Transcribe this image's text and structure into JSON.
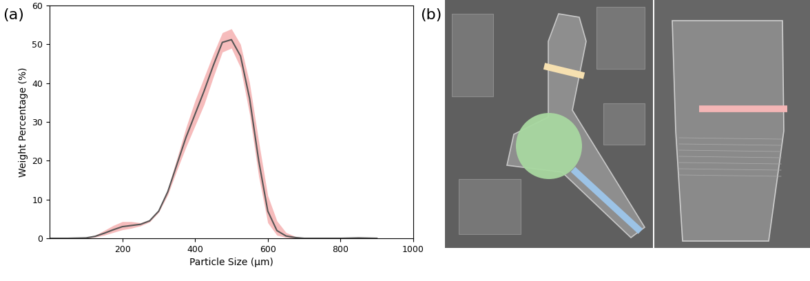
{
  "panel_labels": {
    "a": "(a)",
    "b": "(b)"
  },
  "chart_data": {
    "type": "line",
    "x_label": "Particle Size (μm)",
    "y_label": "Weight Percentage (%)",
    "x": [
      0,
      50,
      100,
      125,
      150,
      175,
      200,
      225,
      250,
      275,
      300,
      325,
      350,
      375,
      400,
      425,
      450,
      475,
      500,
      525,
      550,
      575,
      600,
      625,
      650,
      675,
      700,
      750,
      800,
      850,
      900
    ],
    "series": [
      {
        "color": "#555555",
        "values": [
          0,
          0,
          0.1,
          0.5,
          1.3,
          2.2,
          3.0,
          3.3,
          3.6,
          4.5,
          7,
          12,
          19,
          26,
          32,
          38,
          44.5,
          50.5,
          51.2,
          47,
          36,
          20,
          7,
          2,
          0.6,
          0.2,
          0,
          0,
          0,
          0.1,
          0
        ]
      }
    ],
    "band": {
      "color": "#f4a6a6",
      "lower": [
        0,
        0,
        0,
        0.3,
        0.8,
        1.5,
        2.2,
        2.6,
        3.2,
        4.2,
        6.7,
        11.2,
        17.5,
        23.5,
        29,
        34.5,
        41.5,
        48,
        49,
        44,
        32,
        16,
        4,
        0.8,
        0.2,
        0,
        0,
        0,
        0,
        0,
        0
      ],
      "upper": [
        0,
        0,
        0.2,
        0.8,
        2.0,
        3.3,
        4.3,
        4.3,
        4.0,
        4.8,
        7.3,
        12.8,
        20.5,
        28.5,
        35.5,
        41.5,
        47.5,
        53,
        54,
        50,
        40,
        25,
        11,
        4.5,
        1.5,
        0.5,
        0.1,
        0,
        0.1,
        0.3,
        0.1
      ]
    },
    "xlim": [
      0,
      1000
    ],
    "xticks": [
      200,
      400,
      600,
      800,
      1000
    ],
    "ylim": [
      0,
      60
    ],
    "yticks": [
      0,
      10,
      20,
      30,
      40,
      50,
      60
    ]
  }
}
